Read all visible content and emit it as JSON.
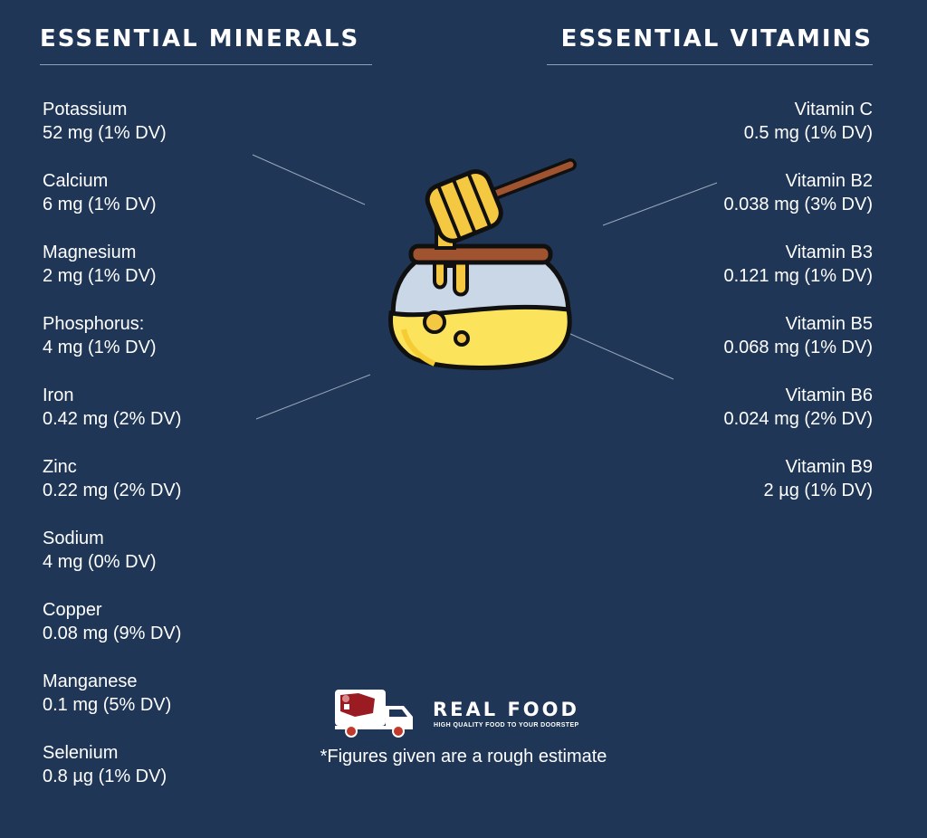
{
  "minerals": {
    "heading": "ESSENTIAL MINERALS",
    "items": [
      {
        "name": "Potassium",
        "value": "52 mg (1% DV)"
      },
      {
        "name": "Calcium",
        "value": "6 mg (1% DV)"
      },
      {
        "name": "Magnesium",
        "value": "2 mg (1% DV)"
      },
      {
        "name": "Phosphorus:",
        "value": "4 mg (1% DV)"
      },
      {
        "name": "Iron",
        "value": "0.42 mg (2% DV)"
      },
      {
        "name": "Zinc",
        "value": "0.22 mg (2% DV)"
      },
      {
        "name": "Sodium",
        "value": "4 mg (0% DV)"
      },
      {
        "name": "Copper",
        "value": "0.08 mg (9% DV)"
      },
      {
        "name": "Manganese",
        "value": "0.1 mg (5% DV)"
      },
      {
        "name": "Selenium",
        "value": "0.8 µg (1% DV)"
      }
    ]
  },
  "vitamins": {
    "heading": "ESSENTIAL VITAMINS",
    "items": [
      {
        "name": "Vitamin C",
        "value": "0.5 mg (1% DV)"
      },
      {
        "name": "Vitamin B2",
        "value": "0.038 mg (3% DV)"
      },
      {
        "name": "Vitamin B3",
        "value": "0.121 mg (1% DV)"
      },
      {
        "name": "Vitamin B5",
        "value": "0.068 mg (1% DV)"
      },
      {
        "name": "Vitamin B6",
        "value": "0.024 mg (2% DV)"
      },
      {
        "name": "Vitamin B9",
        "value": "2 µg (1% DV)"
      }
    ]
  },
  "brand": {
    "name": "REAL FOOD",
    "tagline": "HIGH QUALITY FOOD TO YOUR DOORSTEP"
  },
  "footnote": "*Figures given are a rough estimate",
  "icons": {
    "main": "honey-jar-icon",
    "logo": "delivery-truck-icon"
  },
  "colors": {
    "background": "#1f3656",
    "honey": "#fbe35b",
    "dipper": "#f5c842",
    "wood": "#a0532f",
    "outline": "#101010"
  }
}
